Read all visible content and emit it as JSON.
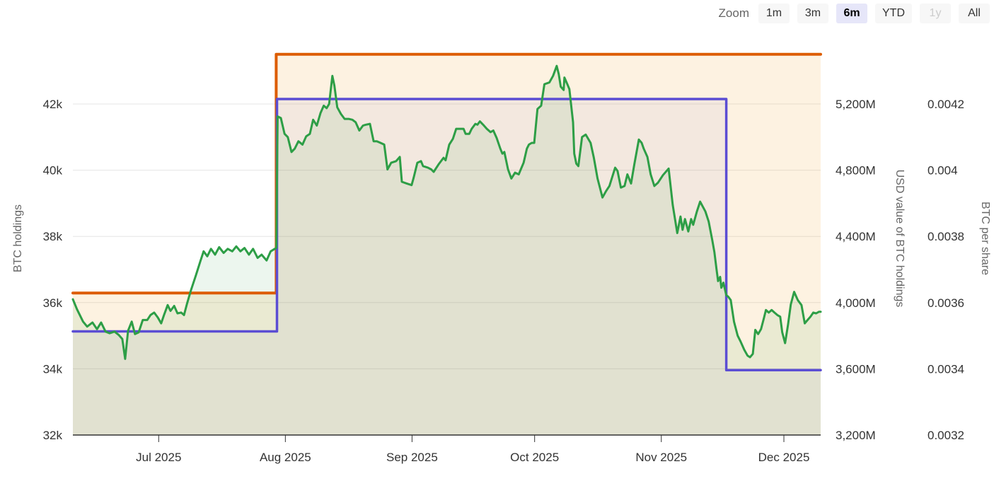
{
  "toolbar": {
    "zoom_label": "Zoom",
    "buttons": [
      {
        "label": "1m",
        "state": "normal"
      },
      {
        "label": "3m",
        "state": "normal"
      },
      {
        "label": "6m",
        "state": "selected"
      },
      {
        "label": "YTD",
        "state": "normal"
      },
      {
        "label": "1y",
        "state": "disabled"
      },
      {
        "label": "All",
        "state": "normal"
      }
    ]
  },
  "chart_data": {
    "type": "line",
    "title": "",
    "grid": true,
    "legend_position": "none",
    "colors": {
      "grid": "#e6e6e6",
      "axis_line": "#333333",
      "tick_text": "#333333",
      "title_text": "#666666",
      "btc_holdings": "#dd5c00",
      "usd_value": "#2d9e46",
      "btc_per_share": "#5b4dd3",
      "btc_holdings_fill": "#f0a028",
      "usd_value_fill": "#2d9e46",
      "btc_per_share_fill": "#5b4dd3"
    },
    "x_axis": {
      "unit": "days from start of visible range (Jun 2025 to Dec 2025)",
      "xlim": [
        0,
        183
      ],
      "month_ticks": [
        {
          "day": 21,
          "label": "Jul 2025"
        },
        {
          "day": 52,
          "label": "Aug 2025"
        },
        {
          "day": 83,
          "label": "Sep 2025"
        },
        {
          "day": 113,
          "label": "Oct 2025"
        },
        {
          "day": 144,
          "label": "Nov 2025"
        },
        {
          "day": 174,
          "label": "Dec 2025"
        }
      ]
    },
    "axes": {
      "left": {
        "title": "BTC holdings",
        "ylim": [
          32000,
          43859
        ],
        "ticks": [
          {
            "v": 42000,
            "label": "42k"
          },
          {
            "v": 40000,
            "label": "40k"
          },
          {
            "v": 38000,
            "label": "38k"
          },
          {
            "v": 36000,
            "label": "36k"
          },
          {
            "v": 34000,
            "label": "34k"
          },
          {
            "v": 32000,
            "label": "32k"
          }
        ]
      },
      "usd": {
        "title": "USD value of BTC holdings",
        "ylim": [
          3200,
          5572
        ],
        "ticks": [
          {
            "v": 5200,
            "label": "5,200M"
          },
          {
            "v": 4800,
            "label": "4,800M"
          },
          {
            "v": 4400,
            "label": "4,400M"
          },
          {
            "v": 4000,
            "label": "4,000M"
          },
          {
            "v": 3600,
            "label": "3,600M"
          },
          {
            "v": 3200,
            "label": "3,200M"
          }
        ]
      },
      "share": {
        "title": "BTC per share",
        "ylim": [
          0.0032,
          0.004386
        ],
        "ticks": [
          {
            "v": 0.0042,
            "label": "0.0042"
          },
          {
            "v": 0.004,
            "label": "0.004"
          },
          {
            "v": 0.0038,
            "label": "0.0038"
          },
          {
            "v": 0.0036,
            "label": "0.0036"
          },
          {
            "v": 0.0034,
            "label": "0.0034"
          },
          {
            "v": 0.0032,
            "label": "0.0032"
          }
        ]
      }
    },
    "series": [
      {
        "name": "BTC holdings",
        "axis": "left",
        "kind": "step",
        "width": 4,
        "points": [
          [
            0,
            36290
          ],
          [
            49.75,
            36290
          ],
          [
            49.75,
            43500
          ],
          [
            183,
            43500
          ]
        ]
      },
      {
        "name": "BTC per share",
        "axis": "share",
        "kind": "step",
        "width": 3.5,
        "points": [
          [
            0,
            0.003513
          ],
          [
            49.95,
            0.003513
          ],
          [
            49.95,
            0.004215
          ],
          [
            159.9,
            0.004215
          ],
          [
            159.9,
            0.003396
          ],
          [
            183,
            0.003396
          ]
        ]
      },
      {
        "name": "USD value of BTC holdings",
        "axis": "usd",
        "kind": "line",
        "width": 3,
        "points": [
          [
            0,
            4020
          ],
          [
            1,
            3960
          ],
          [
            2.5,
            3885
          ],
          [
            3.5,
            3855
          ],
          [
            4.8,
            3880
          ],
          [
            5.9,
            3840
          ],
          [
            6.9,
            3880
          ],
          [
            8,
            3825
          ],
          [
            9,
            3815
          ],
          [
            10.2,
            3825
          ],
          [
            11.2,
            3805
          ],
          [
            12.1,
            3780
          ],
          [
            12.8,
            3660
          ],
          [
            13.5,
            3830
          ],
          [
            14.4,
            3885
          ],
          [
            15.2,
            3810
          ],
          [
            16.1,
            3820
          ],
          [
            17.1,
            3895
          ],
          [
            18.2,
            3895
          ],
          [
            19,
            3925
          ],
          [
            19.9,
            3940
          ],
          [
            20.8,
            3910
          ],
          [
            21.6,
            3875
          ],
          [
            22.3,
            3925
          ],
          [
            23.2,
            3985
          ],
          [
            23.9,
            3950
          ],
          [
            24.8,
            3980
          ],
          [
            25.6,
            3935
          ],
          [
            26.5,
            3940
          ],
          [
            27.2,
            3925
          ],
          [
            27.9,
            3990
          ],
          [
            28.9,
            4075
          ],
          [
            30.1,
            4165
          ],
          [
            31.2,
            4250
          ],
          [
            32,
            4310
          ],
          [
            32.9,
            4280
          ],
          [
            33.8,
            4325
          ],
          [
            34.8,
            4290
          ],
          [
            35.8,
            4335
          ],
          [
            36.9,
            4300
          ],
          [
            37.9,
            4325
          ],
          [
            39,
            4310
          ],
          [
            40,
            4340
          ],
          [
            41,
            4310
          ],
          [
            42,
            4330
          ],
          [
            43.1,
            4290
          ],
          [
            44.1,
            4325
          ],
          [
            45.2,
            4270
          ],
          [
            46.2,
            4290
          ],
          [
            47.4,
            4255
          ],
          [
            48.4,
            4310
          ],
          [
            49.4,
            4325
          ],
          [
            49.8,
            4330
          ],
          [
            50.1,
            5125
          ],
          [
            50.9,
            5115
          ],
          [
            51.8,
            5020
          ],
          [
            52.6,
            5000
          ],
          [
            53.5,
            4910
          ],
          [
            54.3,
            4930
          ],
          [
            55.2,
            4975
          ],
          [
            56.2,
            4955
          ],
          [
            57.1,
            5005
          ],
          [
            58,
            5020
          ],
          [
            58.8,
            5105
          ],
          [
            59.7,
            5070
          ],
          [
            60.6,
            5145
          ],
          [
            61.4,
            5190
          ],
          [
            62.1,
            5175
          ],
          [
            62.7,
            5200
          ],
          [
            63.5,
            5370
          ],
          [
            64,
            5310
          ],
          [
            64.7,
            5180
          ],
          [
            65.6,
            5140
          ],
          [
            66.5,
            5110
          ],
          [
            67.5,
            5110
          ],
          [
            68.4,
            5105
          ],
          [
            69.2,
            5090
          ],
          [
            70.1,
            5040
          ],
          [
            71,
            5070
          ],
          [
            71.7,
            5075
          ],
          [
            72.7,
            5080
          ],
          [
            73.6,
            4975
          ],
          [
            74.4,
            4975
          ],
          [
            75.3,
            4965
          ],
          [
            76.2,
            4955
          ],
          [
            77,
            4805
          ],
          [
            77.9,
            4845
          ],
          [
            79.1,
            4855
          ],
          [
            80,
            4880
          ],
          [
            80.5,
            4730
          ],
          [
            81.7,
            4720
          ],
          [
            82.9,
            4710
          ],
          [
            83.4,
            4755
          ],
          [
            84.3,
            4845
          ],
          [
            85.2,
            4855
          ],
          [
            85.7,
            4825
          ],
          [
            86.9,
            4815
          ],
          [
            87.7,
            4805
          ],
          [
            88.3,
            4790
          ],
          [
            89.5,
            4835
          ],
          [
            90.7,
            4875
          ],
          [
            91.2,
            4860
          ],
          [
            92.1,
            4955
          ],
          [
            93,
            4990
          ],
          [
            93.8,
            5050
          ],
          [
            94.7,
            5050
          ],
          [
            95.6,
            5050
          ],
          [
            96.1,
            5020
          ],
          [
            97,
            5020
          ],
          [
            97.6,
            5050
          ],
          [
            98.5,
            5080
          ],
          [
            99,
            5075
          ],
          [
            99.6,
            5095
          ],
          [
            100.4,
            5075
          ],
          [
            101.3,
            5050
          ],
          [
            102.2,
            5030
          ],
          [
            102.9,
            5040
          ],
          [
            103.7,
            4995
          ],
          [
            104.6,
            4930
          ],
          [
            105.1,
            4900
          ],
          [
            105.6,
            4910
          ],
          [
            106.5,
            4805
          ],
          [
            107.3,
            4750
          ],
          [
            108.2,
            4785
          ],
          [
            109.1,
            4775
          ],
          [
            110.3,
            4845
          ],
          [
            111.1,
            4930
          ],
          [
            111.6,
            4955
          ],
          [
            112.3,
            4965
          ],
          [
            112.9,
            4965
          ],
          [
            113.7,
            5170
          ],
          [
            114.6,
            5190
          ],
          [
            115.4,
            5320
          ],
          [
            116,
            5325
          ],
          [
            116.6,
            5330
          ],
          [
            117.5,
            5370
          ],
          [
            118.4,
            5430
          ],
          [
            118.9,
            5380
          ],
          [
            119.4,
            5305
          ],
          [
            120.1,
            5285
          ],
          [
            120.3,
            5360
          ],
          [
            121,
            5320
          ],
          [
            121.5,
            5290
          ],
          [
            122.4,
            5090
          ],
          [
            122.7,
            4900
          ],
          [
            123.2,
            4840
          ],
          [
            123.7,
            4825
          ],
          [
            124.6,
            5000
          ],
          [
            125.5,
            5015
          ],
          [
            126.7,
            4965
          ],
          [
            127.5,
            4875
          ],
          [
            128.4,
            4750
          ],
          [
            129.6,
            4635
          ],
          [
            130.5,
            4675
          ],
          [
            131.3,
            4705
          ],
          [
            132.7,
            4815
          ],
          [
            133.3,
            4795
          ],
          [
            134.1,
            4695
          ],
          [
            135,
            4705
          ],
          [
            135.7,
            4775
          ],
          [
            136.6,
            4720
          ],
          [
            137.4,
            4835
          ],
          [
            138.5,
            4985
          ],
          [
            139.2,
            4965
          ],
          [
            139.7,
            4930
          ],
          [
            140.6,
            4880
          ],
          [
            141.4,
            4775
          ],
          [
            142.3,
            4705
          ],
          [
            143.2,
            4725
          ],
          [
            144.4,
            4770
          ],
          [
            145.8,
            4810
          ],
          [
            146.8,
            4590
          ],
          [
            147.9,
            4420
          ],
          [
            148.7,
            4520
          ],
          [
            149.2,
            4440
          ],
          [
            149.8,
            4505
          ],
          [
            150.6,
            4430
          ],
          [
            151.3,
            4505
          ],
          [
            151.8,
            4470
          ],
          [
            152.7,
            4550
          ],
          [
            153.5,
            4610
          ],
          [
            154.8,
            4550
          ],
          [
            155.6,
            4490
          ],
          [
            156.5,
            4375
          ],
          [
            157,
            4305
          ],
          [
            157.5,
            4205
          ],
          [
            157.9,
            4130
          ],
          [
            158.4,
            4155
          ],
          [
            158.7,
            4090
          ],
          [
            159.2,
            4120
          ],
          [
            159.9,
            4045
          ],
          [
            160.4,
            4035
          ],
          [
            161,
            4015
          ],
          [
            161.8,
            3885
          ],
          [
            162.7,
            3800
          ],
          [
            163.4,
            3765
          ],
          [
            164.3,
            3715
          ],
          [
            165.1,
            3680
          ],
          [
            165.7,
            3670
          ],
          [
            166.4,
            3690
          ],
          [
            167,
            3835
          ],
          [
            167.7,
            3810
          ],
          [
            168.4,
            3840
          ],
          [
            169.1,
            3905
          ],
          [
            169.6,
            3955
          ],
          [
            170.3,
            3940
          ],
          [
            171,
            3955
          ],
          [
            171.7,
            3940
          ],
          [
            172.4,
            3925
          ],
          [
            173.1,
            3915
          ],
          [
            173.6,
            3820
          ],
          [
            174.3,
            3755
          ],
          [
            175,
            3865
          ],
          [
            175.7,
            3990
          ],
          [
            176.5,
            4065
          ],
          [
            177.4,
            4015
          ],
          [
            178.3,
            3985
          ],
          [
            179.1,
            3875
          ],
          [
            179.8,
            3895
          ],
          [
            180.5,
            3915
          ],
          [
            181.2,
            3940
          ],
          [
            181.9,
            3935
          ],
          [
            182.6,
            3945
          ],
          [
            183,
            3945
          ]
        ]
      }
    ]
  }
}
